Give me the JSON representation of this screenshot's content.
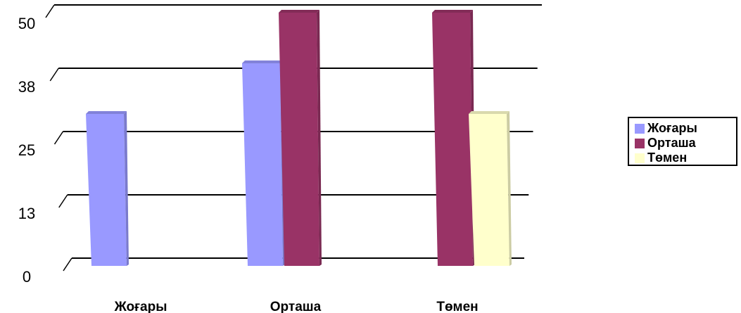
{
  "chart_data": {
    "type": "bar",
    "categories": [
      "Жоғары",
      "Орташа",
      "Төмен"
    ],
    "series": [
      {
        "name": "Жоғары",
        "values": [
          30,
          40,
          0
        ],
        "color": "#9999ff"
      },
      {
        "name": "Орташа",
        "values": [
          0,
          50,
          50
        ],
        "color": "#993366"
      },
      {
        "name": "Төмен",
        "values": [
          0,
          0,
          30
        ],
        "color": "#ffffcc"
      }
    ],
    "y_ticks": [
      "0",
      "13",
      "25",
      "38",
      "50"
    ],
    "ylim": [
      0,
      50
    ],
    "grid": true,
    "legend_position": "right"
  }
}
